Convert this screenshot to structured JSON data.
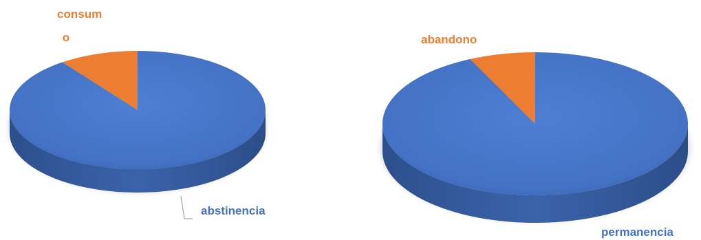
{
  "colors": {
    "blue": "#4472C4",
    "orange": "#ED7D31",
    "leader": "#A5A5A5"
  },
  "chart_data": [
    {
      "type": "pie",
      "style": "3d",
      "title": "",
      "slices": [
        {
          "label": "abstinencia",
          "value": 90,
          "color": "#4472C4"
        },
        {
          "label": "consum o",
          "label_lines": [
            "consum",
            "o"
          ],
          "value": 10,
          "color": "#ED7D31"
        }
      ]
    },
    {
      "type": "pie",
      "style": "3d",
      "title": "",
      "slices": [
        {
          "label": "permanencia",
          "value": 93,
          "color": "#4472C4"
        },
        {
          "label": "abandono",
          "value": 7,
          "color": "#ED7D31"
        }
      ]
    }
  ]
}
